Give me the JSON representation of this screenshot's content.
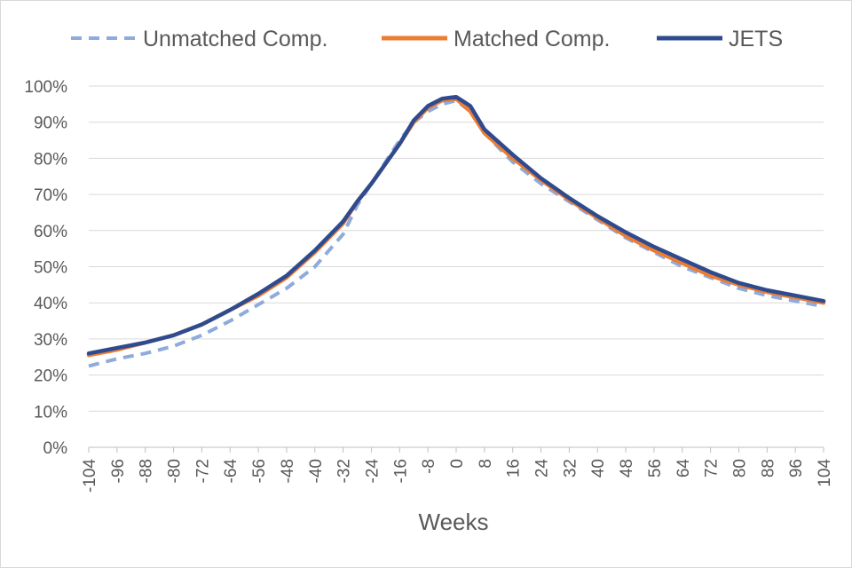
{
  "chart_data": {
    "type": "line",
    "title": "",
    "xlabel": "Weeks",
    "ylabel": "",
    "xlim": [
      -104,
      104
    ],
    "ylim": [
      0,
      100
    ],
    "x_ticks": [
      -104,
      -96,
      -88,
      -80,
      -72,
      -64,
      -56,
      -48,
      -40,
      -32,
      -24,
      -16,
      -8,
      0,
      8,
      16,
      24,
      32,
      40,
      48,
      56,
      64,
      72,
      80,
      88,
      96,
      104
    ],
    "y_ticks": [
      0,
      10,
      20,
      30,
      40,
      50,
      60,
      70,
      80,
      90,
      100
    ],
    "y_tick_suffix": "%",
    "grid": "horizontal",
    "legend_position": "top",
    "x": [
      -104,
      -96,
      -88,
      -80,
      -72,
      -64,
      -56,
      -48,
      -40,
      -32,
      -28,
      -24,
      -20,
      -16,
      -12,
      -8,
      -4,
      0,
      4,
      8,
      16,
      24,
      32,
      40,
      48,
      56,
      64,
      72,
      80,
      88,
      96,
      104
    ],
    "series": [
      {
        "name": "Unmatched Comp.",
        "color": "#8faadc",
        "style": "dashed",
        "values": [
          22.5,
          24.5,
          26,
          28,
          31,
          35,
          39.5,
          44,
          50,
          59,
          67,
          73,
          79,
          85,
          90,
          93,
          95,
          96,
          93,
          87,
          79,
          73,
          68,
          63,
          58,
          54,
          50,
          47,
          44,
          42,
          40.5,
          39
        ]
      },
      {
        "name": "Matched Comp.",
        "color": "#ed7d31",
        "style": "solid",
        "values": [
          25.5,
          27,
          29,
          31,
          34,
          38,
          42,
          47,
          54,
          62,
          68,
          73,
          78.5,
          84,
          90,
          94,
          96,
          96.5,
          93,
          87,
          80,
          74,
          68.5,
          63.5,
          58.5,
          54.5,
          51,
          47.5,
          45,
          43,
          41.5,
          40
        ]
      },
      {
        "name": "JETS",
        "color": "#2f4b8f",
        "style": "solid",
        "values": [
          26,
          27.5,
          29,
          31,
          34,
          38,
          42.5,
          47.5,
          54.5,
          62.5,
          68,
          73,
          78.5,
          84,
          90.5,
          94.5,
          96.5,
          97,
          94.5,
          88,
          81,
          74.5,
          69,
          64,
          59.5,
          55.5,
          52,
          48.5,
          45.5,
          43.5,
          42,
          40.5
        ]
      }
    ]
  }
}
